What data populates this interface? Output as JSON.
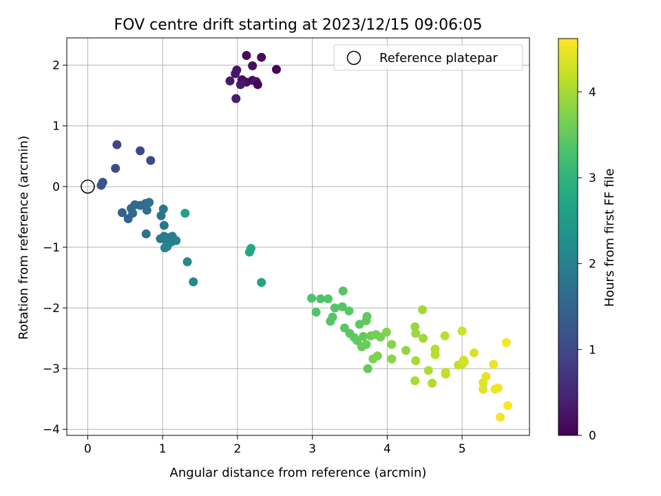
{
  "chart_data": {
    "type": "scatter",
    "title": "FOV centre drift starting at 2023/12/15 09:06:05",
    "xlabel": "Angular distance from reference (arcmin)",
    "ylabel": "Rotation from reference (arcmin)",
    "xlim": [
      -0.28,
      5.9
    ],
    "ylim": [
      -4.1,
      2.45
    ],
    "xticks": [
      0,
      1,
      2,
      3,
      4,
      5
    ],
    "yticks": [
      -4,
      -3,
      -2,
      -1,
      0,
      1,
      2
    ],
    "xtick_labels": [
      "0",
      "1",
      "2",
      "3",
      "4",
      "5"
    ],
    "ytick_labels": [
      "−4",
      "−3",
      "−2",
      "−1",
      "0",
      "1",
      "2"
    ],
    "grid": true,
    "legend": {
      "placement": "top-right",
      "entries": [
        {
          "label": "Reference platepar",
          "marker": "open-circle"
        }
      ]
    },
    "reference_point": {
      "x": 0,
      "y": 0
    },
    "colorbar": {
      "label": "Hours from first FF file",
      "colormap": "viridis",
      "range": [
        0,
        4.62
      ],
      "ticks": [
        0,
        1,
        2,
        3,
        4
      ],
      "tick_labels": [
        "0",
        "1",
        "2",
        "3",
        "4"
      ]
    },
    "points": [
      {
        "x": 2.12,
        "y": 2.16,
        "c": 0.15
      },
      {
        "x": 2.32,
        "y": 2.13,
        "c": 0.12
      },
      {
        "x": 2.52,
        "y": 1.93,
        "c": 0.08
      },
      {
        "x": 2.2,
        "y": 1.99,
        "c": 0.2
      },
      {
        "x": 1.99,
        "y": 1.92,
        "c": 0.25
      },
      {
        "x": 1.97,
        "y": 1.86,
        "c": 0.3
      },
      {
        "x": 2.06,
        "y": 1.76,
        "c": 0.18
      },
      {
        "x": 2.12,
        "y": 1.72,
        "c": 0.22
      },
      {
        "x": 2.2,
        "y": 1.75,
        "c": 0.1
      },
      {
        "x": 2.25,
        "y": 1.73,
        "c": 0.28
      },
      {
        "x": 2.27,
        "y": 1.68,
        "c": 0.05
      },
      {
        "x": 2.04,
        "y": 1.68,
        "c": 0.35
      },
      {
        "x": 1.9,
        "y": 1.74,
        "c": 0.32
      },
      {
        "x": 1.98,
        "y": 1.45,
        "c": 0.38
      },
      {
        "x": 0.39,
        "y": 0.69,
        "c": 0.95
      },
      {
        "x": 0.7,
        "y": 0.59,
        "c": 1.0
      },
      {
        "x": 0.84,
        "y": 0.43,
        "c": 1.05
      },
      {
        "x": 0.37,
        "y": 0.3,
        "c": 1.1
      },
      {
        "x": 0.2,
        "y": 0.07,
        "c": 1.2
      },
      {
        "x": 0.18,
        "y": 0.02,
        "c": 1.25
      },
      {
        "x": 0.46,
        "y": -0.43,
        "c": 1.45
      },
      {
        "x": 0.54,
        "y": -0.53,
        "c": 1.5
      },
      {
        "x": 0.6,
        "y": -0.44,
        "c": 1.55
      },
      {
        "x": 0.58,
        "y": -0.36,
        "c": 1.55
      },
      {
        "x": 0.63,
        "y": -0.3,
        "c": 1.6
      },
      {
        "x": 0.7,
        "y": -0.31,
        "c": 1.62
      },
      {
        "x": 0.77,
        "y": -0.28,
        "c": 1.65
      },
      {
        "x": 0.82,
        "y": -0.26,
        "c": 1.68
      },
      {
        "x": 0.79,
        "y": -0.39,
        "c": 1.7
      },
      {
        "x": 0.78,
        "y": -0.78,
        "c": 1.72
      },
      {
        "x": 0.98,
        "y": -0.48,
        "c": 1.8
      },
      {
        "x": 1.01,
        "y": -0.37,
        "c": 1.82
      },
      {
        "x": 1.02,
        "y": -0.64,
        "c": 1.85
      },
      {
        "x": 0.97,
        "y": -0.86,
        "c": 1.88
      },
      {
        "x": 1.02,
        "y": -0.82,
        "c": 1.9
      },
      {
        "x": 1.06,
        "y": -0.95,
        "c": 1.92
      },
      {
        "x": 1.08,
        "y": -0.84,
        "c": 1.95
      },
      {
        "x": 1.13,
        "y": -0.82,
        "c": 1.98
      },
      {
        "x": 1.12,
        "y": -0.91,
        "c": 2.0
      },
      {
        "x": 1.18,
        "y": -0.89,
        "c": 2.02
      },
      {
        "x": 1.03,
        "y": -1.01,
        "c": 2.05
      },
      {
        "x": 1.06,
        "y": -0.99,
        "c": 2.08
      },
      {
        "x": 1.3,
        "y": -0.44,
        "c": 2.6
      },
      {
        "x": 1.33,
        "y": -1.24,
        "c": 2.15
      },
      {
        "x": 1.41,
        "y": -1.57,
        "c": 2.2
      },
      {
        "x": 2.18,
        "y": -1.02,
        "c": 2.75
      },
      {
        "x": 2.16,
        "y": -1.08,
        "c": 2.78
      },
      {
        "x": 2.32,
        "y": -1.58,
        "c": 2.7
      },
      {
        "x": 2.99,
        "y": -1.84,
        "c": 3.3
      },
      {
        "x": 3.11,
        "y": -1.85,
        "c": 3.32
      },
      {
        "x": 3.21,
        "y": -1.85,
        "c": 3.35
      },
      {
        "x": 3.05,
        "y": -2.07,
        "c": 3.34
      },
      {
        "x": 3.3,
        "y": -2.0,
        "c": 3.36
      },
      {
        "x": 3.4,
        "y": -1.98,
        "c": 3.38
      },
      {
        "x": 3.27,
        "y": -2.15,
        "c": 3.37
      },
      {
        "x": 3.24,
        "y": -2.22,
        "c": 3.39
      },
      {
        "x": 3.41,
        "y": -1.72,
        "c": 3.4
      },
      {
        "x": 3.49,
        "y": -2.05,
        "c": 3.42
      },
      {
        "x": 3.43,
        "y": -2.33,
        "c": 3.44
      },
      {
        "x": 3.5,
        "y": -2.42,
        "c": 3.45
      },
      {
        "x": 3.56,
        "y": -2.49,
        "c": 3.46
      },
      {
        "x": 3.63,
        "y": -2.27,
        "c": 3.47
      },
      {
        "x": 3.72,
        "y": -2.21,
        "c": 3.5
      },
      {
        "x": 3.73,
        "y": -2.14,
        "c": 3.5
      },
      {
        "x": 3.6,
        "y": -2.54,
        "c": 3.48
      },
      {
        "x": 3.68,
        "y": -2.47,
        "c": 3.52
      },
      {
        "x": 3.66,
        "y": -2.64,
        "c": 3.55
      },
      {
        "x": 3.72,
        "y": -2.6,
        "c": 3.58
      },
      {
        "x": 3.78,
        "y": -2.46,
        "c": 3.6
      },
      {
        "x": 3.85,
        "y": -2.44,
        "c": 3.62
      },
      {
        "x": 3.91,
        "y": -2.48,
        "c": 3.65
      },
      {
        "x": 3.74,
        "y": -3.0,
        "c": 3.5
      },
      {
        "x": 3.81,
        "y": -2.84,
        "c": 3.7
      },
      {
        "x": 3.87,
        "y": -2.79,
        "c": 3.72
      },
      {
        "x": 3.99,
        "y": -2.4,
        "c": 3.75
      },
      {
        "x": 4.06,
        "y": -2.6,
        "c": 3.78
      },
      {
        "x": 4.06,
        "y": -2.84,
        "c": 3.8
      },
      {
        "x": 4.25,
        "y": -2.7,
        "c": 3.85
      },
      {
        "x": 4.37,
        "y": -2.31,
        "c": 3.9
      },
      {
        "x": 4.38,
        "y": -2.42,
        "c": 3.92
      },
      {
        "x": 4.47,
        "y": -2.03,
        "c": 3.95
      },
      {
        "x": 4.48,
        "y": -2.5,
        "c": 3.97
      },
      {
        "x": 4.38,
        "y": -2.87,
        "c": 4.0
      },
      {
        "x": 4.37,
        "y": -3.2,
        "c": 4.02
      },
      {
        "x": 4.55,
        "y": -3.03,
        "c": 4.05
      },
      {
        "x": 4.6,
        "y": -3.24,
        "c": 4.07
      },
      {
        "x": 4.64,
        "y": -2.68,
        "c": 4.1
      },
      {
        "x": 4.64,
        "y": -2.77,
        "c": 4.12
      },
      {
        "x": 4.77,
        "y": -2.46,
        "c": 4.15
      },
      {
        "x": 4.78,
        "y": -3.06,
        "c": 4.17
      },
      {
        "x": 4.78,
        "y": -3.09,
        "c": 4.18
      },
      {
        "x": 4.95,
        "y": -2.94,
        "c": 4.2
      },
      {
        "x": 5.0,
        "y": -2.93,
        "c": 4.22
      },
      {
        "x": 5.0,
        "y": -2.38,
        "c": 4.25
      },
      {
        "x": 5.02,
        "y": -2.86,
        "c": 4.3
      },
      {
        "x": 5.03,
        "y": -2.89,
        "c": 4.32
      },
      {
        "x": 5.16,
        "y": -2.74,
        "c": 4.35
      },
      {
        "x": 5.28,
        "y": -3.23,
        "c": 4.4
      },
      {
        "x": 5.28,
        "y": -3.34,
        "c": 4.42
      },
      {
        "x": 5.32,
        "y": -3.13,
        "c": 4.45
      },
      {
        "x": 5.42,
        "y": -2.93,
        "c": 4.48
      },
      {
        "x": 5.44,
        "y": -3.34,
        "c": 4.5
      },
      {
        "x": 5.48,
        "y": -3.32,
        "c": 4.52
      },
      {
        "x": 5.51,
        "y": -3.8,
        "c": 4.55
      },
      {
        "x": 5.59,
        "y": -2.57,
        "c": 4.58
      },
      {
        "x": 5.61,
        "y": -3.61,
        "c": 4.6
      }
    ]
  }
}
